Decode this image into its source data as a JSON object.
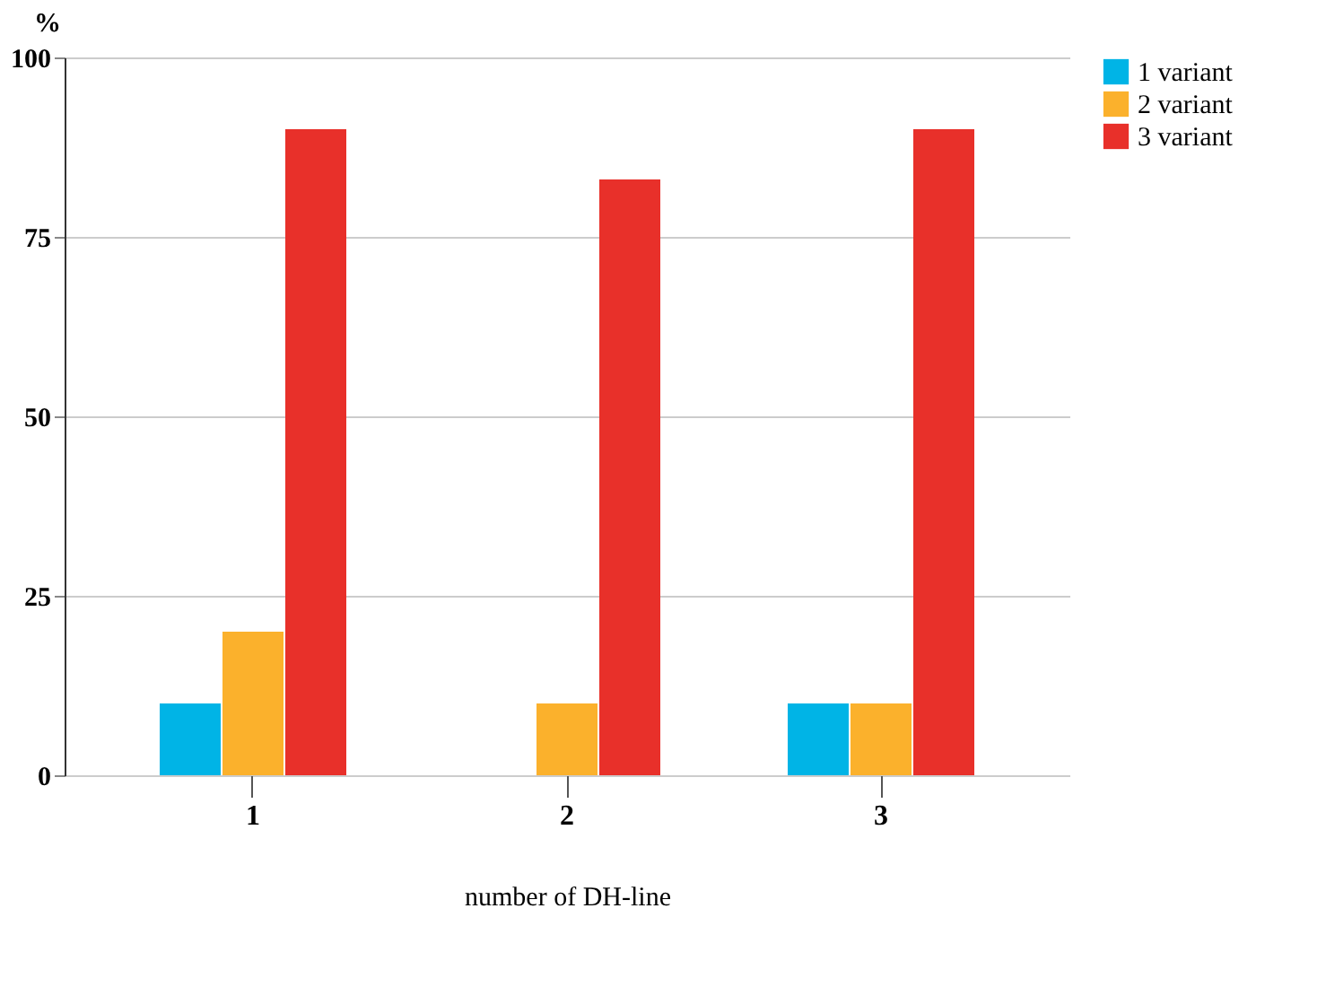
{
  "chart_data": {
    "type": "bar",
    "xlabel": "number of DH-line",
    "ylabel": "%",
    "categories": [
      "1",
      "2",
      "3"
    ],
    "series": [
      {
        "name": "1 variant",
        "color": "#00b4e6",
        "values": [
          10,
          0,
          10
        ]
      },
      {
        "name": "2 variant",
        "color": "#fbb12c",
        "values": [
          20,
          10,
          10
        ]
      },
      {
        "name": "3 variant",
        "color": "#e8302a",
        "values": [
          90,
          83,
          90
        ]
      }
    ],
    "ylim": [
      0,
      100
    ],
    "yticks": [
      0,
      25,
      50,
      75,
      100
    ],
    "grid": "y",
    "legend": "top right"
  }
}
